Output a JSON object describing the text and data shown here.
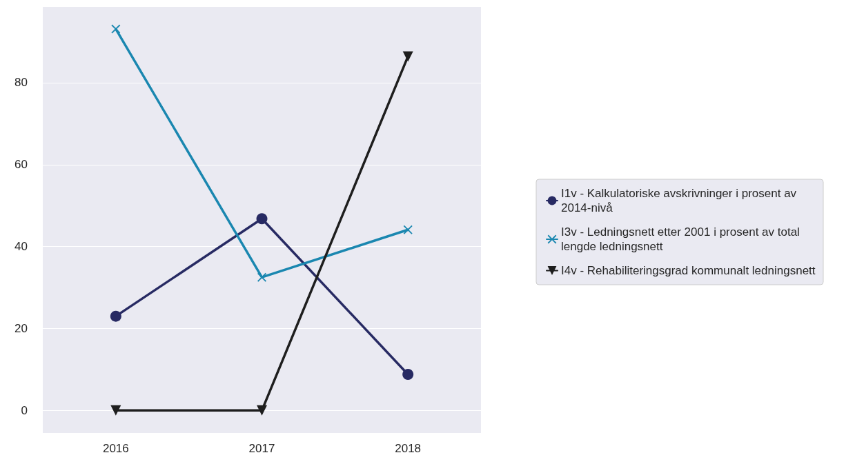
{
  "chart_data": {
    "type": "line",
    "categories": [
      "2016",
      "2017",
      "2018"
    ],
    "series": [
      {
        "name": "I1v - Kalkulatoriske avskrivninger i prosent av 2014-nivå",
        "color": "#272a63",
        "marker": "circle",
        "values": [
          23,
          46.8,
          8.8
        ]
      },
      {
        "name": "I3v - Ledningsnett etter 2001 i prosent av total lengde ledningsnett",
        "color": "#1a87b0",
        "marker": "cross",
        "values": [
          93.1,
          32.5,
          44.1
        ]
      },
      {
        "name": "I4v - Rehabiliteringsgrad kommunalt ledningsnett",
        "color": "#1e1e1e",
        "marker": "triangle",
        "values": [
          0,
          0,
          86.4
        ]
      }
    ],
    "ylim": [
      -5.5,
      98.5
    ],
    "yticks": [
      0,
      20,
      40,
      60,
      80
    ],
    "grid": "y",
    "legend": "right",
    "line_style": "solid"
  }
}
